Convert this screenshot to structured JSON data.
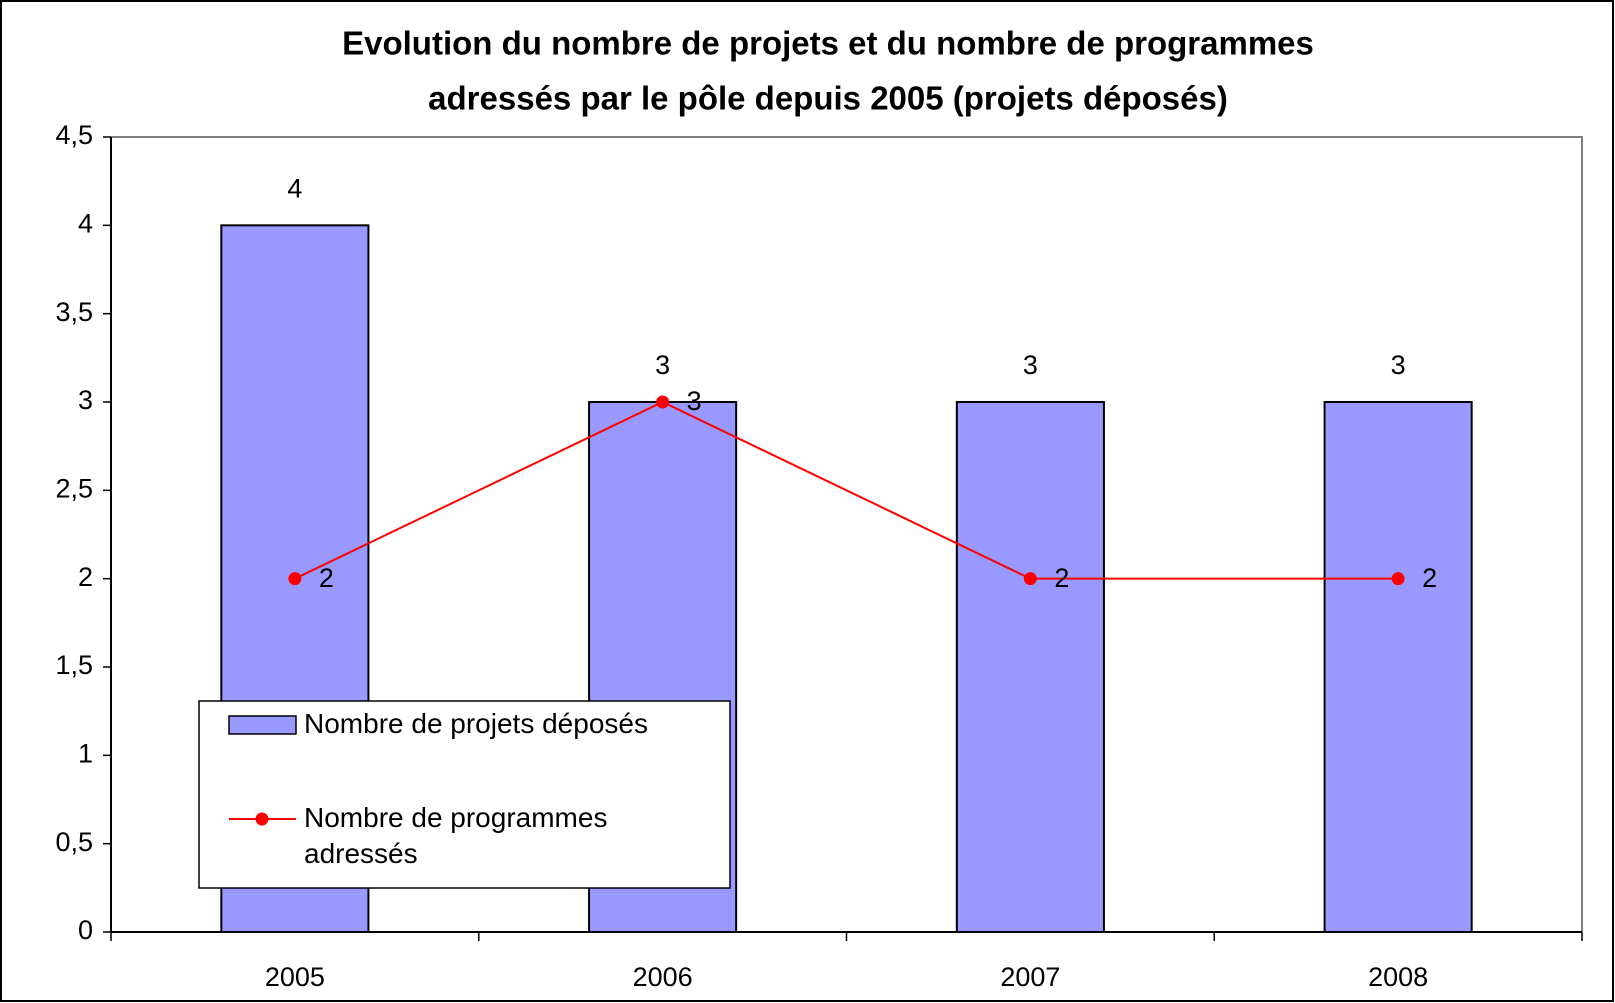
{
  "chart_data": {
    "type": "bar_line",
    "title": [
      "Evolution du nombre de projets et du nombre de programmes",
      "adressés par le pôle depuis 2005 (projets déposés)"
    ],
    "categories": [
      "2005",
      "2006",
      "2007",
      "2008"
    ],
    "series": [
      {
        "name": "Nombre de projets déposés",
        "type": "bar",
        "color": "#9999ff",
        "values": [
          4,
          3,
          3,
          3
        ]
      },
      {
        "name": "Nombre de programmes adressés",
        "type": "line",
        "color": "#ff0000",
        "values": [
          2,
          3,
          2,
          2
        ]
      }
    ],
    "ylim": [
      0,
      4.5
    ],
    "yticks": [
      0,
      {
        "value": 0.5,
        "label": "0,5"
      },
      1,
      {
        "value": 1.5,
        "label": "1,5"
      },
      2,
      {
        "value": 2.5,
        "label": "2,5"
      },
      3,
      {
        "value": 3.5,
        "label": "3,5"
      },
      4,
      {
        "value": 4.5,
        "label": "4,5"
      }
    ],
    "grid": false,
    "legend": "lower-left"
  }
}
